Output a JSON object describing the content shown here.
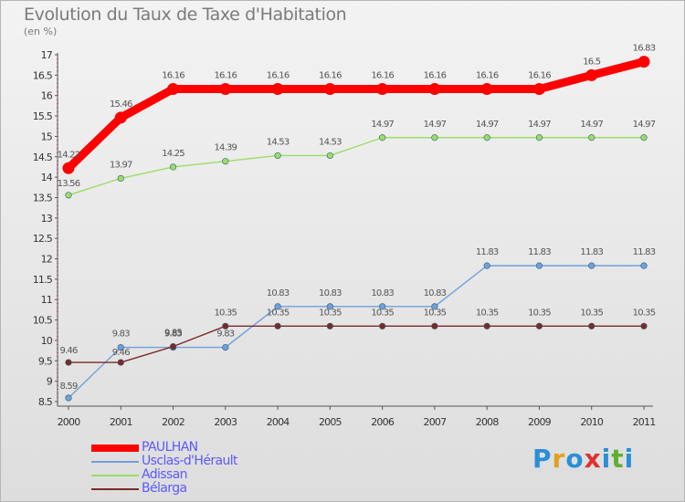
{
  "header": {
    "title": "Evolution du Taux de Taxe d'Habitation",
    "unit": "(en %)"
  },
  "logo": {
    "text": "Proxiti",
    "letter_colors": [
      "#2a8fd6",
      "#e0a020",
      "#2a8fd6",
      "#e03030",
      "#2a8fd6",
      "#60b030",
      "#2a8fd6"
    ]
  },
  "chart_data": {
    "type": "line",
    "title": "Evolution du Taux de Taxe d'Habitation",
    "ylabel": "(en %)",
    "xlabel": "",
    "x": [
      "2000",
      "2001",
      "2002",
      "2003",
      "2004",
      "2005",
      "2006",
      "2007",
      "2008",
      "2009",
      "2010",
      "2011"
    ],
    "ylim": [
      8.5,
      17
    ],
    "yticks": [
      "8.5",
      "9",
      "9.5",
      "10",
      "10.5",
      "11",
      "11.5",
      "12",
      "12.5",
      "13",
      "13.5",
      "14",
      "14.5",
      "15",
      "15.5",
      "16",
      "16.5",
      "17"
    ],
    "grid": false,
    "legend_position": "bottom-left",
    "series": [
      {
        "name": "PAULHAN",
        "color": "#ff0000",
        "values": [
          14.22,
          15.46,
          16.16,
          16.16,
          16.16,
          16.16,
          16.16,
          16.16,
          16.16,
          16.16,
          16.5,
          16.83
        ],
        "labels": [
          "14.22",
          "15.46",
          "16.16",
          "16.16",
          "16.16",
          "16.16",
          "16.16",
          "16.16",
          "16.16",
          "16.16",
          "16.5",
          "16.83"
        ]
      },
      {
        "name": "Usclas-d'Hérault",
        "color": "#6fa0d8",
        "values": [
          8.59,
          9.83,
          9.83,
          9.83,
          10.83,
          10.83,
          10.83,
          10.83,
          11.83,
          11.83,
          11.83,
          11.83
        ],
        "labels": [
          "8.59",
          "9.83",
          "9.83",
          "9.83",
          "10.83",
          "10.83",
          "10.83",
          "10.83",
          "11.83",
          "11.83",
          "11.83",
          "11.83"
        ]
      },
      {
        "name": "Adissan",
        "color": "#99dd66",
        "values": [
          13.56,
          13.97,
          14.25,
          14.39,
          14.53,
          14.53,
          14.97,
          14.97,
          14.97,
          14.97,
          14.97,
          14.97
        ],
        "labels": [
          "13.56",
          "13.97",
          "14.25",
          "14.39",
          "14.53",
          "14.53",
          "14.97",
          "14.97",
          "14.97",
          "14.97",
          "14.97",
          "14.97"
        ]
      },
      {
        "name": "Bélarga",
        "color": "#7a2a2a",
        "values": [
          9.46,
          9.46,
          9.85,
          10.35,
          10.35,
          10.35,
          10.35,
          10.35,
          10.35,
          10.35,
          10.35,
          10.35
        ],
        "labels": [
          "9.46",
          "9.46",
          "9.85",
          "10.35",
          "10.35",
          "10.35",
          "10.35",
          "10.35",
          "10.35",
          "10.35",
          "10.35",
          "10.35"
        ]
      }
    ]
  }
}
